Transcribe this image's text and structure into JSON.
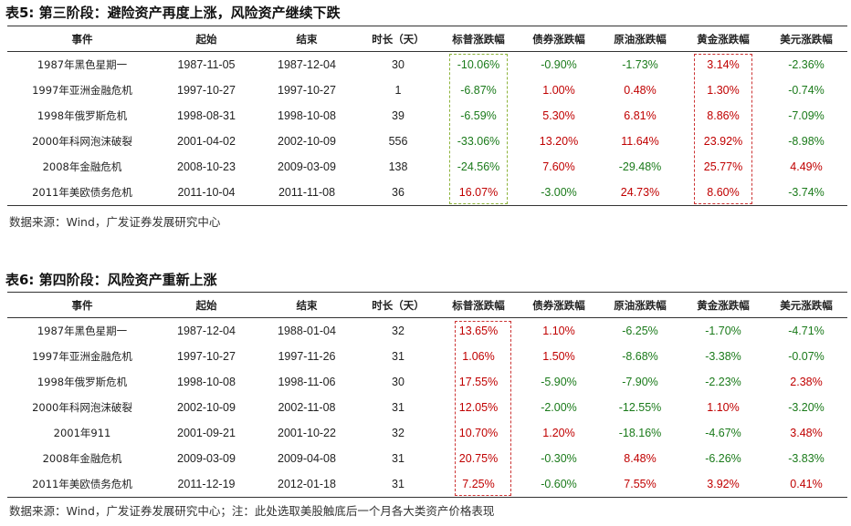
{
  "colors": {
    "positive": "#c00000",
    "negative": "#1a7a1a",
    "green_box": "#8db33a",
    "red_box": "#cc3333"
  },
  "table5": {
    "title": "表5: 第三阶段：避险资产再度上涨，风险资产继续下跌",
    "headers": [
      "事件",
      "起始",
      "结束",
      "时长（天）",
      "标普涨跌幅",
      "债券涨跌幅",
      "原油涨跌幅",
      "黄金涨跌幅",
      "美元涨跌幅"
    ],
    "rows": [
      [
        "1987年黑色星期一",
        "1987-11-05",
        "1987-12-04",
        "30",
        "-10.06%",
        "-0.90%",
        "-1.73%",
        "3.14%",
        "-2.36%"
      ],
      [
        "1997年亚洲金融危机",
        "1997-10-27",
        "1997-10-27",
        "1",
        "-6.87%",
        "1.00%",
        "0.48%",
        "1.30%",
        "-0.74%"
      ],
      [
        "1998年俄罗斯危机",
        "1998-08-31",
        "1998-10-08",
        "39",
        "-6.59%",
        "5.30%",
        "6.81%",
        "8.86%",
        "-7.09%"
      ],
      [
        "2000年科网泡沫破裂",
        "2001-04-02",
        "2002-10-09",
        "556",
        "-33.06%",
        "13.20%",
        "11.64%",
        "23.92%",
        "-8.98%"
      ],
      [
        "2008年金融危机",
        "2008-10-23",
        "2009-03-09",
        "138",
        "-24.56%",
        "7.60%",
        "-29.48%",
        "25.77%",
        "4.49%"
      ],
      [
        "2011年美欧债务危机",
        "2011-10-04",
        "2011-11-08",
        "36",
        "16.07%",
        "-3.00%",
        "24.73%",
        "8.60%",
        "-3.74%"
      ]
    ],
    "source": "数据来源：Wind，广发证券发展研究中心"
  },
  "table6": {
    "title": "表6: 第四阶段：风险资产重新上涨",
    "headers": [
      "事件",
      "起始",
      "结束",
      "时长（天）",
      "标普涨跌幅",
      "债券涨跌幅",
      "原油涨跌幅",
      "黄金涨跌幅",
      "美元涨跌幅"
    ],
    "rows": [
      [
        "1987年黑色星期一",
        "1987-12-04",
        "1988-01-04",
        "32",
        "13.65%",
        "1.10%",
        "-6.25%",
        "-1.70%",
        "-4.71%"
      ],
      [
        "1997年亚洲金融危机",
        "1997-10-27",
        "1997-11-26",
        "31",
        "1.06%",
        "1.50%",
        "-8.68%",
        "-3.38%",
        "-0.07%"
      ],
      [
        "1998年俄罗斯危机",
        "1998-10-08",
        "1998-11-06",
        "30",
        "17.55%",
        "-5.90%",
        "-7.90%",
        "-2.23%",
        "2.38%"
      ],
      [
        "2000年科网泡沫破裂",
        "2002-10-09",
        "2002-11-08",
        "31",
        "12.05%",
        "-2.00%",
        "-12.55%",
        "1.10%",
        "-3.20%"
      ],
      [
        "2001年911",
        "2001-09-21",
        "2001-10-22",
        "32",
        "10.70%",
        "1.20%",
        "-18.16%",
        "-4.67%",
        "3.48%"
      ],
      [
        "2008年金融危机",
        "2009-03-09",
        "2009-04-08",
        "31",
        "20.75%",
        "-0.30%",
        "8.48%",
        "-6.26%",
        "-3.83%"
      ],
      [
        "2011年美欧债务危机",
        "2011-12-19",
        "2012-01-18",
        "31",
        "7.25%",
        "-0.60%",
        "7.55%",
        "3.92%",
        "0.41%"
      ]
    ],
    "source": "数据来源：Wind，广发证券发展研究中心；注：此处选取美股触底后一个月各大类资产价格表现"
  }
}
